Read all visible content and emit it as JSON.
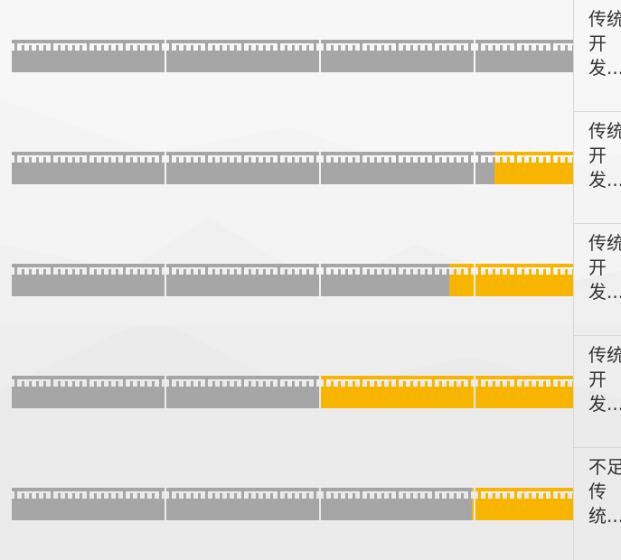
{
  "theme": {
    "gray": "#a6a6a6",
    "orange": "#f7b500",
    "divider": "#d7d7d7",
    "label_color": "#333333"
  },
  "rows": [
    {
      "label": "传统开发...",
      "highlight_fraction": 0.0
    },
    {
      "label": "传统开发...",
      "highlight_fraction": 0.14
    },
    {
      "label": "传统开发...",
      "highlight_fraction": 0.22
    },
    {
      "label": "传统开发...",
      "highlight_fraction": 0.45
    },
    {
      "label": "不足传统...",
      "highlight_fraction": 0.18
    }
  ]
}
